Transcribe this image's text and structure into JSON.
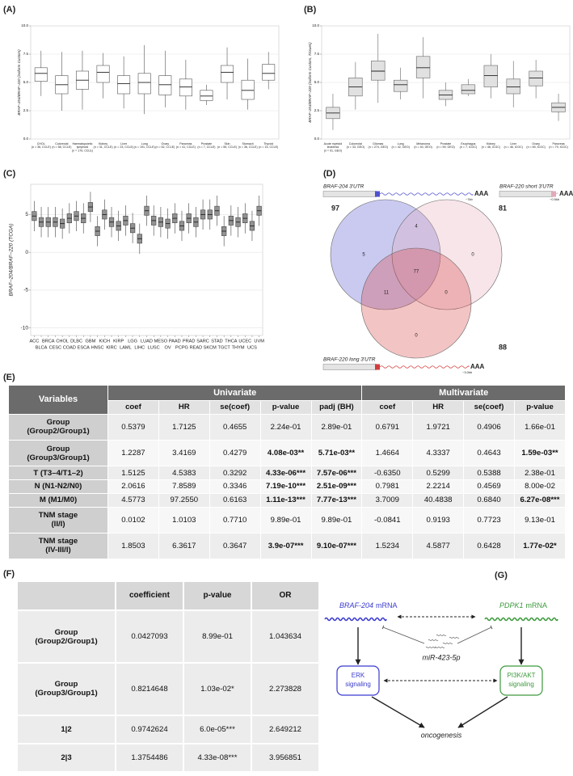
{
  "panel_a": {
    "label": "(A)",
    "chart": {
      "type": "box",
      "ylabel": "BRAF−204/BRAF−220 (isoform Custom)",
      "categories": [
        [
          "CHOL",
          "(n = 36, CCLE)"
        ],
        [
          "Colorectal",
          "(n = 58, CCLE)"
        ],
        [
          "Haematopoietic",
          "lymphoid",
          "(n = 179, CCLE)"
        ],
        [
          "Kidney",
          "(n = 31, CCLE)"
        ],
        [
          "Liver",
          "(n = 23, CCLE)"
        ],
        [
          "Lung",
          "(n = 191, CCLE)"
        ],
        [
          "Ovary",
          "(n = 52, CCLE)"
        ],
        [
          "Pancreas",
          "(n = 41, CCLE)"
        ],
        [
          "Prostate",
          "(n = 7, CCLE)"
        ],
        [
          "Skin",
          "(n = 55, CCLE)"
        ],
        [
          "Stomach",
          "(n = 36, CCLE)"
        ],
        [
          "Thyroid",
          "(n = 15, CCLE)"
        ]
      ],
      "medians": [
        5.8,
        4.8,
        5.2,
        5.9,
        4.9,
        5.0,
        4.8,
        4.6,
        3.8,
        5.9,
        4.3,
        5.8
      ],
      "q1": [
        5.1,
        4.0,
        4.4,
        5.0,
        4.0,
        4.0,
        3.9,
        3.8,
        3.4,
        5.0,
        3.5,
        5.2
      ],
      "q3": [
        6.3,
        5.6,
        6.0,
        6.5,
        5.6,
        5.8,
        5.6,
        5.3,
        4.3,
        6.5,
        5.2,
        6.6
      ],
      "whisker_low": [
        3.8,
        2.5,
        2.6,
        3.6,
        2.7,
        2.2,
        2.8,
        2.6,
        3.0,
        3.5,
        2.6,
        4.4
      ],
      "whisker_high": [
        7.8,
        7.7,
        7.8,
        7.6,
        7.3,
        8.3,
        7.8,
        7.0,
        4.8,
        8.1,
        7.1,
        7.7
      ],
      "ylim": [
        0,
        10
      ],
      "yticks": [
        {
          "value": 0,
          "label": "0.0"
        },
        {
          "value": 2.5,
          "label": "2.5"
        },
        {
          "value": 5,
          "label": "5.0"
        },
        {
          "value": 7.5,
          "label": "7.5"
        },
        {
          "value": 10,
          "label": "10.0"
        }
      ],
      "grid": true,
      "box_fill": "#ffffff",
      "box_stroke": "#555555"
    }
  },
  "panel_b": {
    "label": "(B)",
    "chart": {
      "type": "box",
      "ylabel": "BRAF−204/BRAF−220 (isoform Custom, Tissues)",
      "categories": [
        [
          "Acute myeloid",
          "leukemia",
          "(n = 91, GEO)"
        ],
        [
          "Colorectal",
          "(n = 33, GEO)"
        ],
        [
          "Gliomas",
          "(n = 274, GEO)"
        ],
        [
          "Lung",
          "(n = 42, GEO)"
        ],
        [
          "Melanoma",
          "(n = 40, GEO)"
        ],
        [
          "Prostate",
          "(n = 59, GEO)"
        ],
        [
          "Esophagus",
          "(n = 7, ICGC)"
        ],
        [
          "Kidney",
          "(n = 46, ICGC)"
        ],
        [
          "Liver",
          "(n = 46, ICGC)"
        ],
        [
          "Ovary",
          "(n = 69, ICGC)"
        ],
        [
          "Pancreas",
          "(n = 79, ICGC)"
        ]
      ],
      "medians": [
        2.3,
        4.6,
        6.0,
        4.8,
        6.3,
        3.9,
        4.3,
        5.6,
        4.6,
        5.4,
        2.8
      ],
      "q1": [
        1.8,
        3.8,
        5.2,
        4.2,
        5.4,
        3.5,
        4.0,
        4.6,
        4.0,
        4.7,
        2.4
      ],
      "q3": [
        2.8,
        5.4,
        6.9,
        5.2,
        7.3,
        4.3,
        4.8,
        6.5,
        5.3,
        6.0,
        3.2
      ],
      "whisker_low": [
        0.8,
        2.6,
        3.2,
        3.5,
        3.6,
        2.9,
        3.8,
        3.6,
        2.8,
        3.6,
        1.6
      ],
      "whisker_high": [
        4.0,
        6.8,
        9.3,
        6.3,
        9.0,
        5.0,
        5.3,
        7.5,
        6.9,
        7.0,
        4.0
      ],
      "ylim": [
        0,
        10
      ],
      "yticks": [
        {
          "value": 0,
          "label": "0.0"
        },
        {
          "value": 2.5,
          "label": "2.5"
        },
        {
          "value": 5,
          "label": "5.0"
        },
        {
          "value": 7.5,
          "label": "7.5"
        },
        {
          "value": 10,
          "label": "10.0"
        }
      ],
      "grid": true,
      "box_fill": "#dcdcdc",
      "box_stroke": "#666666"
    }
  },
  "panel_c": {
    "label": "(C)",
    "chart": {
      "type": "box",
      "ylabel": "BRAF−204/BRAF−220 (TCGA)",
      "categories": [
        "ACC",
        "BLCA",
        "BRCA",
        "CESC",
        "CHOL",
        "COAD",
        "DLBC",
        "ESCA",
        "GBM",
        "HNSC",
        "KICH",
        "KIRC",
        "KIRP",
        "LAML",
        "LGG",
        "LIHC",
        "LUAD",
        "LUSC",
        "MESO",
        "OV",
        "PAAD",
        "PCPG",
        "PRAD",
        "READ",
        "SARC",
        "SKCM",
        "STAD",
        "TGCT",
        "THCA",
        "THYM",
        "UCEC",
        "UCS",
        "UVM"
      ],
      "medians": [
        4.8,
        4.0,
        4.0,
        4.0,
        3.8,
        4.5,
        4.8,
        4.5,
        6.0,
        2.8,
        5.0,
        4.0,
        3.5,
        4.2,
        3.2,
        1.8,
        5.5,
        4.2,
        4.0,
        3.8,
        4.5,
        3.5,
        4.5,
        4.0,
        5.0,
        5.0,
        5.5,
        2.8,
        4.2,
        4.0,
        4.5,
        3.5,
        5.5
      ],
      "q1": [
        4.2,
        3.4,
        3.4,
        3.4,
        3.2,
        3.9,
        4.2,
        3.9,
        5.4,
        2.2,
        4.4,
        3.4,
        2.9,
        3.6,
        2.6,
        1.2,
        4.9,
        3.6,
        3.4,
        3.2,
        3.9,
        2.9,
        3.9,
        3.4,
        4.4,
        4.4,
        4.9,
        2.2,
        3.6,
        3.4,
        3.9,
        2.9,
        4.9
      ],
      "q3": [
        5.4,
        4.6,
        4.6,
        4.6,
        4.4,
        5.1,
        5.4,
        5.1,
        6.6,
        3.4,
        5.6,
        4.6,
        4.1,
        4.8,
        3.8,
        2.4,
        6.1,
        4.8,
        4.6,
        4.4,
        5.1,
        4.1,
        5.1,
        4.6,
        5.6,
        5.6,
        6.1,
        3.4,
        4.8,
        4.6,
        5.1,
        4.1,
        6.1
      ],
      "whisker_low": [
        2.8,
        2.0,
        2.0,
        2.0,
        1.8,
        2.5,
        2.8,
        2.5,
        4.0,
        0.8,
        3.0,
        2.0,
        1.5,
        2.2,
        1.2,
        -0.2,
        3.5,
        2.2,
        2.0,
        1.8,
        2.5,
        1.5,
        2.5,
        2.0,
        3.0,
        3.0,
        3.5,
        0.8,
        2.2,
        2.0,
        2.5,
        1.5,
        3.5
      ],
      "whisker_high": [
        6.8,
        6.0,
        6.0,
        6.0,
        5.8,
        6.5,
        6.8,
        6.5,
        8.0,
        4.8,
        7.0,
        6.0,
        5.5,
        6.2,
        5.2,
        3.8,
        7.5,
        6.2,
        6.0,
        5.8,
        6.5,
        5.5,
        6.5,
        6.0,
        7.0,
        7.0,
        7.5,
        4.8,
        6.2,
        6.0,
        6.5,
        5.5,
        7.5
      ],
      "ylim": [
        -11,
        9
      ],
      "yticks": [
        -10,
        -5,
        0,
        5
      ],
      "grid": true,
      "box_fill": "#7f7f7f",
      "box_stroke": "#444444"
    }
  },
  "panel_d": {
    "label": "(D)",
    "poly_a": "AAA",
    "sets": [
      {
        "name": "BRAF-204 3'UTR",
        "total": 97,
        "color": "#5050d0",
        "length": "~7kb"
      },
      {
        "name": "BRAF-220 short 3'UTR",
        "total": 81,
        "color": "#e3a9b8",
        "length": "~0.5kb"
      },
      {
        "name": "BRAF-220 long 3'UTR",
        "total": 88,
        "color": "#d63c3c",
        "length": "~3.0kb"
      }
    ],
    "regions": {
      "only_1": 5,
      "1_2": 4,
      "only_2": 0,
      "all": 77,
      "1_3": 11,
      "2_3": 0,
      "only_3": 0
    }
  },
  "panel_e": {
    "label": "(E)",
    "header": {
      "variables": "Variables",
      "groups": [
        "Univariate",
        "Multivariate"
      ],
      "columns": [
        "coef",
        "HR",
        "se(coef)",
        "p-value",
        "padj (BH)",
        "coef",
        "HR",
        "se(coef)",
        "p-value"
      ]
    },
    "rows": [
      {
        "label": [
          "Group",
          "(Group2/Group1)"
        ],
        "cells": [
          "0.5379",
          "1.7125",
          "0.4655",
          "2.24e-01",
          "2.89e-01",
          "0.6791",
          "1.9721",
          "0.4906",
          "1.66e-01"
        ],
        "bold": []
      },
      {
        "label": [
          "Group",
          "(Group3/Group1)"
        ],
        "cells": [
          "1.2287",
          "3.4169",
          "0.4279",
          "4.08e-03**",
          "5.71e-03**",
          "1.4664",
          "4.3337",
          "0.4643",
          "1.59e-03**"
        ],
        "bold": [
          3,
          4,
          8
        ]
      },
      {
        "label": [
          "T (T3–4/T1–2)"
        ],
        "cells": [
          "1.5125",
          "4.5383",
          "0.3292",
          "4.33e-06***",
          "7.57e-06***",
          "-0.6350",
          "0.5299",
          "0.5388",
          "2.38e-01"
        ],
        "bold": [
          3,
          4
        ]
      },
      {
        "label": [
          "N (N1-N2/N0)"
        ],
        "cells": [
          "2.0616",
          "7.8589",
          "0.3346",
          "7.19e-10***",
          "2.51e-09***",
          "0.7981",
          "2.2214",
          "0.4569",
          "8.00e-02"
        ],
        "bold": [
          3,
          4
        ]
      },
      {
        "label": [
          "M (M1/M0)"
        ],
        "cells": [
          "4.5773",
          "97.2550",
          "0.6163",
          "1.11e-13***",
          "7.77e-13***",
          "3.7009",
          "40.4838",
          "0.6840",
          "6.27e-08***"
        ],
        "bold": [
          3,
          4,
          8
        ]
      },
      {
        "label": [
          "TNM stage",
          "(II/I)"
        ],
        "cells": [
          "0.0102",
          "1.0103",
          "0.7710",
          "9.89e-01",
          "9.89e-01",
          "-0.0841",
          "0.9193",
          "0.7723",
          "9.13e-01"
        ],
        "bold": []
      },
      {
        "label": [
          "TNM stage",
          "(IV-III/I)"
        ],
        "cells": [
          "1.8503",
          "6.3617",
          "0.3647",
          "3.9e-07***",
          "9.10e-07***",
          "1.5234",
          "4.5877",
          "0.6428",
          "1.77e-02*"
        ],
        "bold": [
          3,
          4,
          8
        ]
      }
    ]
  },
  "panel_f": {
    "label": "(F)",
    "columns": [
      "coefficient",
      "p-value",
      "OR"
    ],
    "rows": [
      {
        "label": [
          "Group",
          "(Group2/Group1)"
        ],
        "cells": [
          "0.0427093",
          "8.99e-01",
          "1.043634"
        ]
      },
      {
        "label": [
          "Group",
          "(Group3/Group1)"
        ],
        "cells": [
          "0.8214648",
          "1.03e-02*",
          "2.273828"
        ]
      },
      {
        "label": [
          "1|2"
        ],
        "cells": [
          "0.9742624",
          "6.0e-05***",
          "2.649212"
        ]
      },
      {
        "label": [
          "2|3"
        ],
        "cells": [
          "1.3754486",
          "4.33e-08***",
          "3.956851"
        ]
      }
    ]
  },
  "panel_g": {
    "label": "(G)",
    "braf": {
      "gene": "BRAF-204",
      "suffix": "mRNA",
      "color": "#3a3ad0"
    },
    "pdpk1": {
      "gene": "PDPK1",
      "suffix": "mRNA",
      "color": "#3d9a3d"
    },
    "mirna": "miR-423-5p",
    "erk": [
      "ERK",
      "signaling"
    ],
    "pi3k": [
      "PI3K/AKT",
      "signaling"
    ],
    "outcome": "oncogenesis"
  }
}
